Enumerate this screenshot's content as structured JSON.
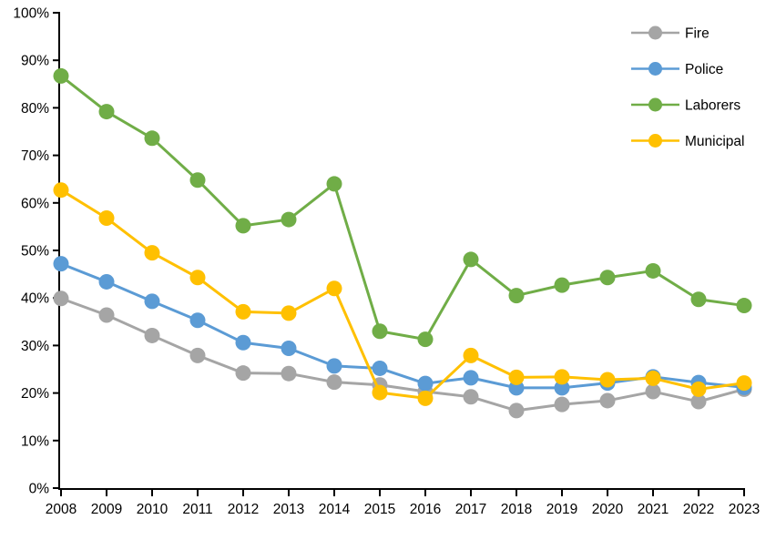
{
  "chart_data": {
    "type": "line",
    "title": "",
    "xlabel": "",
    "ylabel": "",
    "categories": [
      "2008",
      "2009",
      "2010",
      "2011",
      "2012",
      "2013",
      "2014",
      "2015",
      "2016",
      "2017",
      "2018",
      "2019",
      "2020",
      "2021",
      "2022",
      "2023"
    ],
    "series": [
      {
        "name": "Fire",
        "color": "#A5A5A5",
        "values": [
          39.9,
          36.4,
          32.1,
          27.9,
          24.2,
          24.1,
          22.3,
          21.7,
          20.3,
          19.2,
          16.3,
          17.6,
          18.4,
          20.3,
          18.2,
          20.8
        ]
      },
      {
        "name": "Police",
        "color": "#5B9BD5",
        "values": [
          47.2,
          43.4,
          39.3,
          35.3,
          30.6,
          29.4,
          25.7,
          25.2,
          22.0,
          23.2,
          21.1,
          21.1,
          22.1,
          23.4,
          22.2,
          21.2
        ]
      },
      {
        "name": "Laborers",
        "color": "#70AD47",
        "values": [
          86.7,
          79.2,
          73.6,
          64.8,
          55.2,
          56.5,
          64.0,
          33.0,
          31.3,
          48.1,
          40.5,
          42.7,
          44.3,
          45.7,
          39.7,
          38.4
        ]
      },
      {
        "name": "Municipal",
        "color": "#FFC000",
        "values": [
          62.7,
          56.8,
          49.5,
          44.3,
          37.1,
          36.8,
          42.0,
          20.1,
          18.9,
          27.9,
          23.3,
          23.4,
          22.8,
          23.1,
          20.8,
          22.1
        ]
      }
    ],
    "ylim": [
      0,
      100
    ],
    "ytick_step": 10,
    "yticks": [
      "0%",
      "10%",
      "20%",
      "30%",
      "40%",
      "50%",
      "60%",
      "70%",
      "80%",
      "90%",
      "100%"
    ],
    "grid": false,
    "legend_position": "top-right",
    "axis_color": "#000000",
    "background_color": "#ffffff"
  }
}
